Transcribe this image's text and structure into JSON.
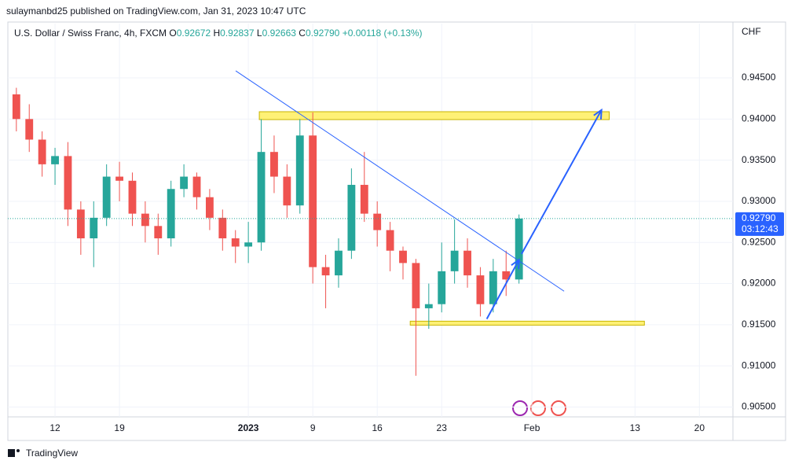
{
  "header": {
    "published": "sulaymanbd25 published on TradingView.com, Jan 31, 2023 10:47 UTC"
  },
  "legend": {
    "symbol": "U.S. Dollar / Swiss Franc, 4h, FXCM",
    "open_label": "O",
    "open": "0.92672",
    "high_label": "H",
    "high": "0.92837",
    "low_label": "L",
    "low": "0.92663",
    "close_label": "C",
    "close": "0.92790",
    "change": "+0.00118 (+0.13%)"
  },
  "footer": {
    "brand": "TradingView"
  },
  "chart_data": {
    "type": "candlestick",
    "currency": "CHF",
    "up_color": "#26a69a",
    "down_color": "#ef5350",
    "x": [
      -3,
      -2,
      -1,
      0,
      1,
      2,
      3,
      4,
      5,
      6,
      7,
      8,
      9,
      10,
      11,
      12,
      13,
      14,
      15,
      16,
      17,
      18,
      19,
      20,
      21,
      22,
      23,
      24,
      25,
      26,
      27,
      28,
      29,
      30,
      31,
      32,
      33,
      34,
      35,
      36
    ],
    "open": [
      0.943,
      0.94,
      0.9375,
      0.9345,
      0.9355,
      0.929,
      0.9255,
      0.928,
      0.933,
      0.9325,
      0.9285,
      0.927,
      0.9255,
      0.9315,
      0.933,
      0.9305,
      0.928,
      0.9255,
      0.9245,
      0.925,
      0.936,
      0.933,
      0.9295,
      0.938,
      0.922,
      0.921,
      0.924,
      0.932,
      0.9285,
      0.9265,
      0.924,
      0.9225,
      0.917,
      0.9175,
      0.9215,
      0.924,
      0.921,
      0.9175,
      0.9215,
      0.9205
    ],
    "high": [
      0.9438,
      0.9418,
      0.9385,
      0.9365,
      0.9372,
      0.93,
      0.93,
      0.9345,
      0.9348,
      0.9335,
      0.93,
      0.9285,
      0.9325,
      0.9345,
      0.9335,
      0.9315,
      0.929,
      0.9265,
      0.9275,
      0.94,
      0.938,
      0.9345,
      0.94,
      0.9408,
      0.9235,
      0.9255,
      0.934,
      0.936,
      0.93,
      0.9275,
      0.9245,
      0.923,
      0.92,
      0.925,
      0.9278,
      0.9255,
      0.922,
      0.923,
      0.924,
      0.9284
    ],
    "low": [
      0.9385,
      0.936,
      0.933,
      0.932,
      0.927,
      0.9235,
      0.922,
      0.927,
      0.93,
      0.927,
      0.925,
      0.9235,
      0.9245,
      0.9305,
      0.929,
      0.9265,
      0.924,
      0.9225,
      0.9225,
      0.924,
      0.931,
      0.928,
      0.9285,
      0.92,
      0.917,
      0.9195,
      0.923,
      0.9275,
      0.9245,
      0.9215,
      0.9205,
      0.9088,
      0.9145,
      0.9165,
      0.92,
      0.9195,
      0.916,
      0.9165,
      0.9185,
      0.92
    ],
    "close": [
      0.94,
      0.9375,
      0.9345,
      0.9355,
      0.929,
      0.9255,
      0.928,
      0.933,
      0.9325,
      0.9285,
      0.927,
      0.9255,
      0.9315,
      0.933,
      0.9305,
      0.928,
      0.9255,
      0.9245,
      0.925,
      0.936,
      0.933,
      0.9295,
      0.938,
      0.922,
      0.921,
      0.924,
      0.932,
      0.9285,
      0.9265,
      0.924,
      0.9225,
      0.917,
      0.9175,
      0.9215,
      0.924,
      0.921,
      0.9175,
      0.9215,
      0.9205,
      0.9279
    ],
    "xlim": [
      -3.66,
      52.6
    ],
    "ylim": [
      0.9038,
      0.9516
    ],
    "xticks": [
      {
        "value": 0,
        "label": "12"
      },
      {
        "value": 5,
        "label": "19"
      },
      {
        "value": 15,
        "label": "2023"
      },
      {
        "value": 20,
        "label": "9"
      },
      {
        "value": 25,
        "label": "16"
      },
      {
        "value": 30,
        "label": "23"
      },
      {
        "value": 37,
        "label": "Feb"
      },
      {
        "value": 45,
        "label": "13"
      },
      {
        "value": 50,
        "label": "20"
      }
    ],
    "yticks": [
      {
        "value": 0.905,
        "label": "0.90500"
      },
      {
        "value": 0.91,
        "label": "0.91000"
      },
      {
        "value": 0.915,
        "label": "0.91500"
      },
      {
        "value": 0.92,
        "label": "0.92000"
      },
      {
        "value": 0.925,
        "label": "0.92500"
      },
      {
        "value": 0.93,
        "label": "0.93000"
      },
      {
        "value": 0.935,
        "label": "0.93500"
      },
      {
        "value": 0.94,
        "label": "0.94000"
      },
      {
        "value": 0.945,
        "label": "0.94500"
      }
    ],
    "grid": true,
    "last_price": {
      "value": 0.9279,
      "label": "0.92790",
      "countdown": "03:12:43",
      "color": "#2962ff"
    },
    "trendlines": [
      {
        "x": [
          14.02,
          39.5
        ],
        "y": [
          0.94586,
          0.91907
        ],
        "color": "#2962ff"
      }
    ],
    "arrows": [
      {
        "x": [
          33.5,
          36.0
        ],
        "y": [
          0.9157,
          0.9229
        ],
        "color": "#2962ff"
      },
      {
        "x": [
          36.2,
          42.4
        ],
        "y": [
          0.9236,
          0.9411
        ],
        "color": "#2962ff"
      }
    ],
    "zones": [
      {
        "x": [
          15.85,
          43.0
        ],
        "y": [
          0.94089,
          0.93993
        ],
        "color": "#fff176"
      },
      {
        "x": [
          27.56,
          45.73
        ],
        "y": [
          0.91543,
          0.91495
        ],
        "color": "#fff176"
      }
    ]
  }
}
